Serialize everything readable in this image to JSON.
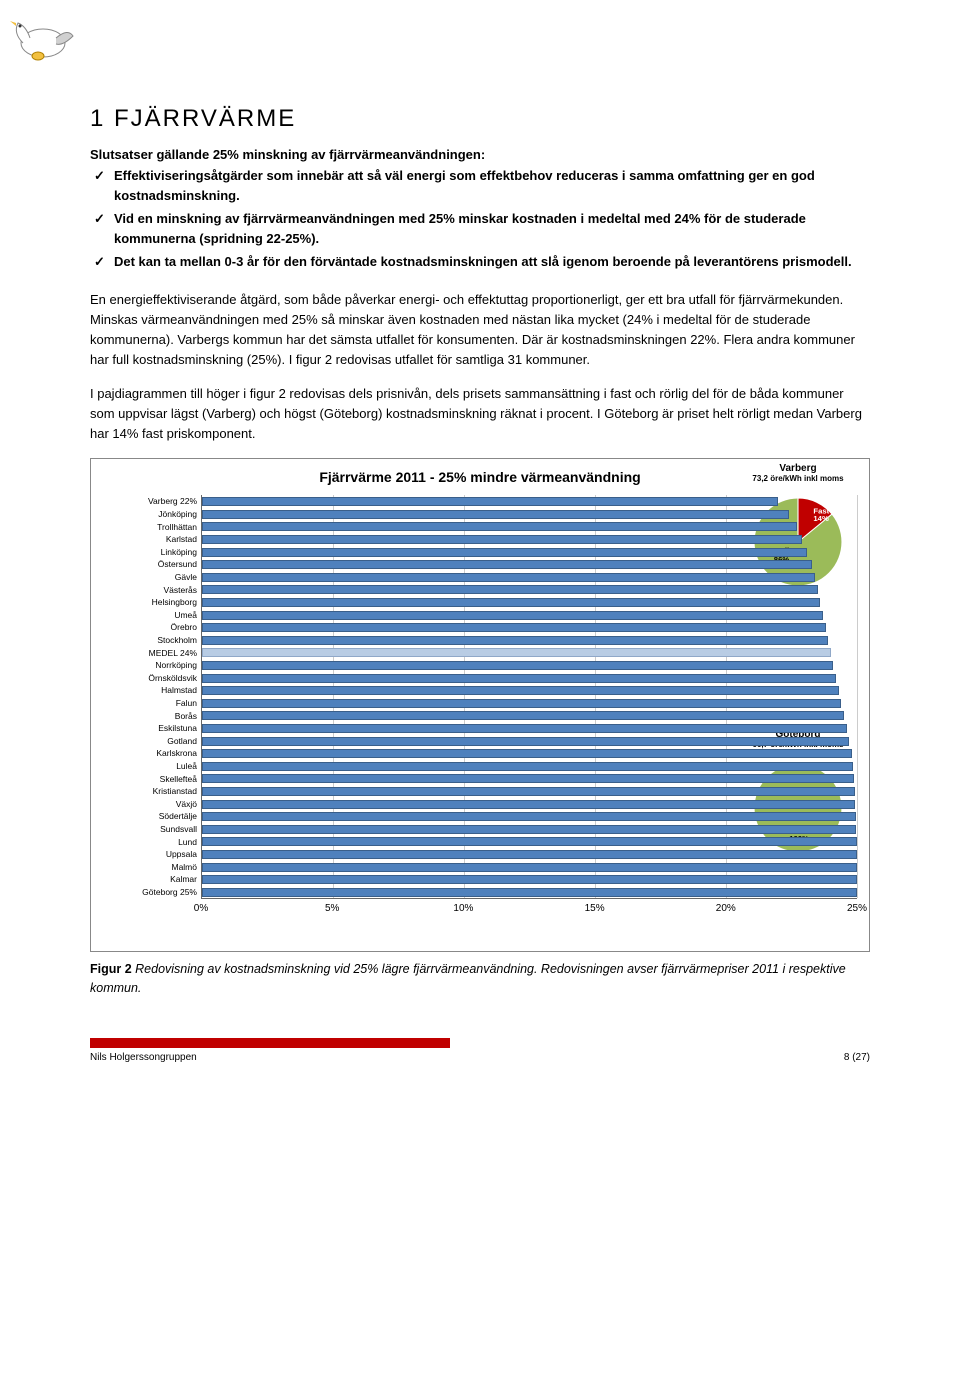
{
  "section_title": "1 FJÄRRVÄRME",
  "bullet_intro": "Slutsatser gällande 25% minskning av fjärrvärmeanvändningen:",
  "bullets": [
    "Effektiviseringsåtgärder som innebär att så väl energi som effektbehov reduceras i samma omfattning ger en god kostnadsminskning.",
    "Vid en minskning av fjärrvärmeanvändningen med 25% minskar kostnaden i medeltal med 24% för de studerade kommunerna (spridning 22-25%).",
    "Det kan ta mellan 0-3 år för den förväntade kostnadsminskningen att slå igenom beroende på leverantörens prismodell."
  ],
  "paras": [
    "En energieffektiviserande åtgärd, som både påverkar energi- och effektuttag proportionerligt, ger ett bra utfall för fjärrvärmekunden. Minskas värmeanvändningen med 25% så minskar även kostnaden med nästan lika mycket (24% i medeltal för de studerade kommunerna). Varbergs kommun har det sämsta utfallet för konsumenten. Där är kostnadsminskningen 22%. Flera andra kommuner har full kostnadsminskning (25%). I figur 2 redovisas utfallet för samtliga 31 kommuner.",
    "I pajdiagrammen till höger i figur 2 redovisas dels prisnivån, dels prisets sammansättning i fast och rörlig del för de båda kommuner som uppvisar lägst (Varberg) och högst (Göteborg) kostnadsminskning räknat i procent. I Göteborg är priset helt rörligt medan Varberg har 14% fast priskomponent."
  ],
  "chart": {
    "title": "Fjärrvärme 2011 - 25% mindre värmeanvändning",
    "xmax": 25,
    "xticks": [
      0,
      5,
      10,
      15,
      20,
      25
    ],
    "bar_color": "#4f81bd",
    "bar_color_light": "#b8cce4",
    "bars": [
      {
        "label": "Varberg 22%",
        "value": 22.0
      },
      {
        "label": "Jönköping",
        "value": 22.4
      },
      {
        "label": "Trollhättan",
        "value": 22.7
      },
      {
        "label": "Karlstad",
        "value": 22.9
      },
      {
        "label": "Linköping",
        "value": 23.1
      },
      {
        "label": "Östersund",
        "value": 23.3
      },
      {
        "label": "Gävle",
        "value": 23.4
      },
      {
        "label": "Västerås",
        "value": 23.5
      },
      {
        "label": "Helsingborg",
        "value": 23.6
      },
      {
        "label": "Umeå",
        "value": 23.7
      },
      {
        "label": "Örebro",
        "value": 23.8
      },
      {
        "label": "Stockholm",
        "value": 23.9
      },
      {
        "label": "MEDEL 24%",
        "value": 24.0,
        "light": true
      },
      {
        "label": "Norrköping",
        "value": 24.1
      },
      {
        "label": "Örnsköldsvik",
        "value": 24.2
      },
      {
        "label": "Halmstad",
        "value": 24.3
      },
      {
        "label": "Falun",
        "value": 24.4
      },
      {
        "label": "Borås",
        "value": 24.5
      },
      {
        "label": "Eskilstuna",
        "value": 24.6
      },
      {
        "label": "Gotland",
        "value": 24.7
      },
      {
        "label": "Karlskrona",
        "value": 24.8
      },
      {
        "label": "Luleå",
        "value": 24.85
      },
      {
        "label": "Skellefteå",
        "value": 24.9
      },
      {
        "label": "Kristianstad",
        "value": 24.92
      },
      {
        "label": "Växjö",
        "value": 24.94
      },
      {
        "label": "Södertälje",
        "value": 24.96
      },
      {
        "label": "Sundsvall",
        "value": 24.98
      },
      {
        "label": "Lund",
        "value": 25.0
      },
      {
        "label": "Uppsala",
        "value": 25.0
      },
      {
        "label": "Malmö",
        "value": 25.0
      },
      {
        "label": "Kalmar",
        "value": 25.0
      },
      {
        "label": "Göteborg 25%",
        "value": 25.0
      }
    ]
  },
  "pies": {
    "varberg": {
      "title": "Varberg",
      "sub": "73,2 öre/kWh inkl moms",
      "slices": [
        {
          "label": "Fast",
          "pct": 14,
          "color": "#c00000"
        },
        {
          "label": "Rörlig",
          "pct": 86,
          "color": "#9bbb59"
        }
      ]
    },
    "goteborg": {
      "title": "Göteborg",
      "sub": "66,7 öre/kWh inkl moms",
      "slices": [
        {
          "label": "Rörlig",
          "pct": 100,
          "color": "#9bbb59"
        }
      ]
    }
  },
  "caption_bold": "Figur 2",
  "caption": " Redovisning av kostnadsminskning vid 25% lägre fjärrvärmeanvändning. Redovisningen avser fjärrvärmepriser 2011 i respektive kommun.",
  "footer_author": "Nils Holgerssongruppen",
  "footer_page": "8 (27)"
}
